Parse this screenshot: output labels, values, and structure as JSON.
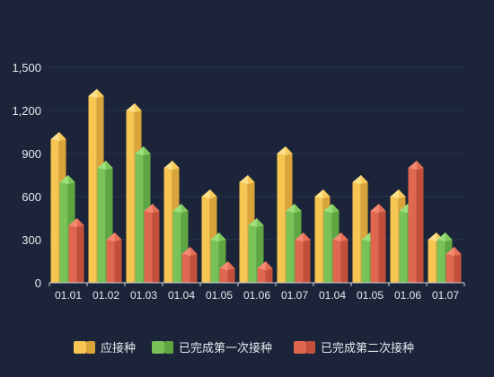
{
  "chart_data": {
    "type": "bar",
    "bar_style": "3d",
    "categories": [
      "01.01",
      "01.02",
      "01.03",
      "01.04",
      "01.05",
      "01.06",
      "01.07",
      "01.04",
      "01.05",
      "01.06",
      "01.07"
    ],
    "series": [
      {
        "name": "应接种",
        "values": [
          1000,
          1300,
          1200,
          800,
          600,
          700,
          900,
          600,
          700,
          600,
          300
        ],
        "color": "#f6c552",
        "dark": "#d9a53a",
        "light": "#fde08a"
      },
      {
        "name": "已完成第一次接种",
        "values": [
          700,
          800,
          900,
          500,
          300,
          400,
          500,
          500,
          300,
          500,
          300
        ],
        "color": "#78c257",
        "dark": "#5fa642",
        "light": "#9be07a"
      },
      {
        "name": "已完成第二次接种",
        "values": [
          400,
          300,
          500,
          200,
          100,
          100,
          300,
          300,
          500,
          800,
          200
        ],
        "color": "#e0674f",
        "dark": "#c24f3a",
        "light": "#f48a73"
      }
    ],
    "yticks": [
      "0",
      "300",
      "600",
      "900",
      "1,200",
      "1,500"
    ],
    "ylim": [
      0,
      1500
    ],
    "grid": true,
    "legend_position": "bottom"
  }
}
